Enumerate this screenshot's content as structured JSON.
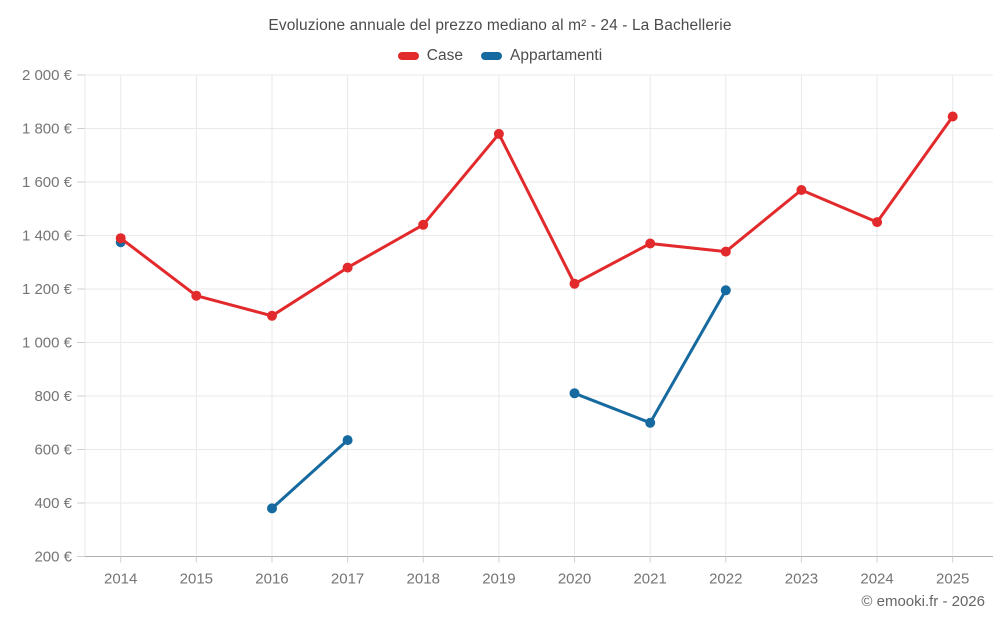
{
  "chart_data": {
    "type": "line",
    "title": "Evoluzione annuale del prezzo mediano al m² - 24 - La Bachellerie",
    "categories": [
      "2014",
      "2015",
      "2016",
      "2017",
      "2018",
      "2019",
      "2020",
      "2021",
      "2022",
      "2023",
      "2024",
      "2025"
    ],
    "series": [
      {
        "name": "Case",
        "color": "#e22a2c",
        "values": [
          1390,
          1175,
          1100,
          1280,
          1440,
          1780,
          1220,
          1370,
          1340,
          1570,
          1450,
          1845
        ]
      },
      {
        "name": "Appartamenti",
        "color": "#176a9f",
        "values": [
          1375,
          null,
          380,
          635,
          null,
          null,
          810,
          700,
          1195,
          null,
          null,
          null
        ]
      }
    ],
    "xlabel": "",
    "ylabel": "",
    "ylim": [
      200,
      2000
    ],
    "yticks": [
      {
        "value": 2000,
        "label": "2 000 €"
      },
      {
        "value": 1800,
        "label": "1 800 €"
      },
      {
        "value": 1600,
        "label": "1 600 €"
      },
      {
        "value": 1400,
        "label": "1 400 €"
      },
      {
        "value": 1200,
        "label": "1 200 €"
      },
      {
        "value": 1000,
        "label": "1 000 €"
      },
      {
        "value": 800,
        "label": "800 €"
      },
      {
        "value": 600,
        "label": "600 €"
      },
      {
        "value": 400,
        "label": "400 €"
      },
      {
        "value": 200,
        "label": "200 €"
      }
    ],
    "grid": true,
    "legend_position": "top"
  },
  "footer": {
    "credit": "© emooki.fr - 2026"
  },
  "colors": {
    "grid": "#e9e9e9",
    "axis": "#b0b0b0",
    "tick": "#cfcfcf",
    "axis_text": "#757575",
    "title_text": "#4c4c4c"
  }
}
